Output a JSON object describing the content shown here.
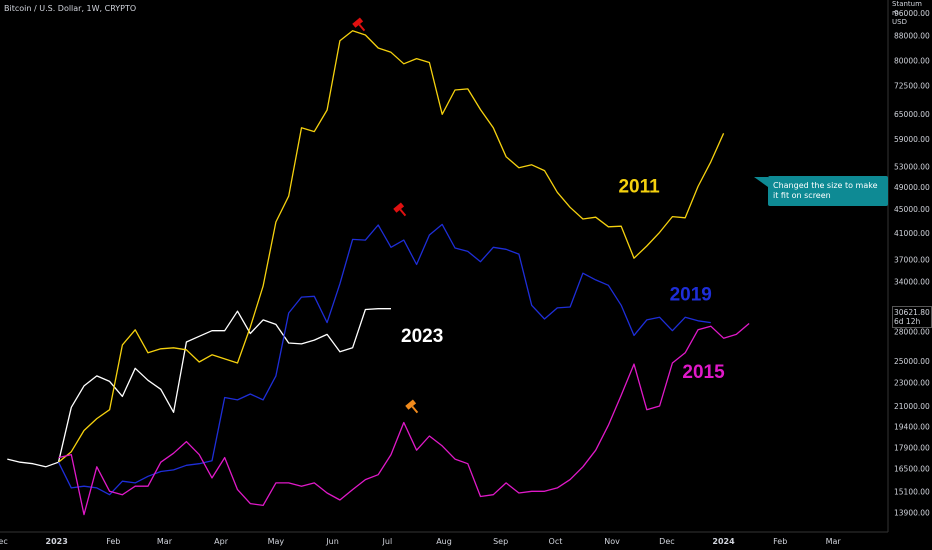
{
  "header": {
    "symbol_title": "Bitcoin / U.S. Dollar, 1W, CRYPTO",
    "corner_line1": "Stantum m",
    "corner_line2": "USD"
  },
  "tooltip": {
    "text": "Changed the size to make it fit on screen"
  },
  "last_price": {
    "value": "30621.80",
    "countdown": "6d 12h"
  },
  "colors": {
    "background": "#000000",
    "y2011": "#f5d10e",
    "y2019": "#1e2ed8",
    "y2015": "#e019c8",
    "y2023": "#ffffff",
    "axis_text": "#d1d4dc",
    "tooltip_bg": "#0e8a94",
    "marker_red": "#e01010",
    "marker_orange": "#f08a1c"
  },
  "chart_data": {
    "type": "line",
    "title": "Bitcoin / U.S. Dollar, 1W, CRYPTO",
    "x_axis": {
      "tick_labels": [
        "Dec",
        "2023",
        "Feb",
        "Mar",
        "Apr",
        "May",
        "Jun",
        "Jul",
        "Aug",
        "Sep",
        "Oct",
        "Nov",
        "Dec",
        "2024",
        "Feb",
        "Mar"
      ],
      "range": [
        "2022-12-01",
        "2024-03-31"
      ]
    },
    "y_axis": {
      "scale": "log",
      "tick_labels": [
        "96000.00",
        "88000.00",
        "80000.00",
        "72500.00",
        "65000.00",
        "59000.00",
        "53000.00",
        "49000.00",
        "45000.00",
        "41000.00",
        "37000.00",
        "34000.00",
        "28000.00",
        "25000.00",
        "23000.00",
        "21000.00",
        "19400.00",
        "17900.00",
        "16500.00",
        "15100.00",
        "13900.00"
      ],
      "range": [
        12900,
        101000
      ]
    },
    "legend": "none",
    "grid": false,
    "annotations": [
      {
        "text": "2011",
        "color": "#f5d10e"
      },
      {
        "text": "2019",
        "color": "#1e2ed8"
      },
      {
        "text": "2015",
        "color": "#e019c8"
      },
      {
        "text": "2023",
        "color": "#ffffff"
      }
    ],
    "series": [
      {
        "name": "2023",
        "color": "#ffffff",
        "points": [
          [
            "2022-12-05",
            17100
          ],
          [
            "2022-12-12",
            16900
          ],
          [
            "2022-12-19",
            16800
          ],
          [
            "2022-12-26",
            16600
          ],
          [
            "2023-01-02",
            16900
          ],
          [
            "2023-01-09",
            20900
          ],
          [
            "2023-01-16",
            22700
          ],
          [
            "2023-01-23",
            23600
          ],
          [
            "2023-01-30",
            23100
          ],
          [
            "2023-02-06",
            21800
          ],
          [
            "2023-02-13",
            24300
          ],
          [
            "2023-02-20",
            23200
          ],
          [
            "2023-02-27",
            22400
          ],
          [
            "2023-03-06",
            20500
          ],
          [
            "2023-03-13",
            26900
          ],
          [
            "2023-03-20",
            27500
          ],
          [
            "2023-03-27",
            28100
          ],
          [
            "2023-04-03",
            28100
          ],
          [
            "2023-04-10",
            30300
          ],
          [
            "2023-04-17",
            27800
          ],
          [
            "2023-04-24",
            29300
          ],
          [
            "2023-05-01",
            28800
          ],
          [
            "2023-05-08",
            26800
          ],
          [
            "2023-05-15",
            26700
          ],
          [
            "2023-05-22",
            27100
          ],
          [
            "2023-05-29",
            27700
          ],
          [
            "2023-06-05",
            25900
          ],
          [
            "2023-06-12",
            26300
          ],
          [
            "2023-06-19",
            30500
          ],
          [
            "2023-06-26",
            30600
          ],
          [
            "2023-07-03",
            30600
          ]
        ]
      },
      {
        "name": "2011",
        "color": "#f5d10e",
        "points": [
          [
            "2023-01-02",
            16900
          ],
          [
            "2023-01-09",
            17600
          ],
          [
            "2023-01-16",
            19100
          ],
          [
            "2023-01-23",
            20000
          ],
          [
            "2023-01-30",
            20700
          ],
          [
            "2023-02-06",
            26600
          ],
          [
            "2023-02-13",
            28200
          ],
          [
            "2023-02-20",
            25800
          ],
          [
            "2023-02-27",
            26200
          ],
          [
            "2023-03-06",
            26300
          ],
          [
            "2023-03-13",
            26100
          ],
          [
            "2023-03-20",
            24900
          ],
          [
            "2023-03-27",
            25600
          ],
          [
            "2023-04-03",
            25200
          ],
          [
            "2023-04-10",
            24800
          ],
          [
            "2023-04-17",
            28500
          ],
          [
            "2023-04-24",
            33400
          ],
          [
            "2023-05-01",
            42800
          ],
          [
            "2023-05-08",
            47300
          ],
          [
            "2023-05-15",
            61600
          ],
          [
            "2023-05-22",
            60700
          ],
          [
            "2023-05-29",
            66000
          ],
          [
            "2023-06-05",
            86300
          ],
          [
            "2023-06-12",
            89700
          ],
          [
            "2023-06-19",
            88200
          ],
          [
            "2023-06-26",
            83900
          ],
          [
            "2023-07-03",
            82500
          ],
          [
            "2023-07-10",
            78900
          ],
          [
            "2023-07-17",
            80500
          ],
          [
            "2023-07-24",
            79300
          ],
          [
            "2023-07-31",
            64900
          ],
          [
            "2023-08-07",
            71300
          ],
          [
            "2023-08-14",
            71600
          ],
          [
            "2023-08-21",
            66100
          ],
          [
            "2023-08-28",
            61600
          ],
          [
            "2023-09-04",
            55100
          ],
          [
            "2023-09-11",
            52800
          ],
          [
            "2023-09-18",
            53400
          ],
          [
            "2023-09-25",
            52200
          ],
          [
            "2023-10-02",
            48000
          ],
          [
            "2023-10-09",
            45300
          ],
          [
            "2023-10-16",
            43300
          ],
          [
            "2023-10-23",
            43600
          ],
          [
            "2023-10-30",
            42000
          ],
          [
            "2023-11-06",
            42100
          ],
          [
            "2023-11-13",
            37200
          ],
          [
            "2023-11-20",
            39000
          ],
          [
            "2023-11-27",
            41100
          ],
          [
            "2023-12-04",
            43700
          ],
          [
            "2023-12-11",
            43500
          ],
          [
            "2023-12-18",
            49100
          ],
          [
            "2023-12-25",
            54000
          ],
          [
            "2024-01-01",
            60300
          ]
        ]
      },
      {
        "name": "2019",
        "color": "#1e2ed8",
        "points": [
          [
            "2023-01-02",
            16900
          ],
          [
            "2023-01-09",
            15300
          ],
          [
            "2023-01-16",
            15400
          ],
          [
            "2023-01-23",
            15300
          ],
          [
            "2023-01-30",
            14900
          ],
          [
            "2023-02-06",
            15700
          ],
          [
            "2023-02-13",
            15600
          ],
          [
            "2023-02-20",
            16000
          ],
          [
            "2023-02-27",
            16300
          ],
          [
            "2023-03-06",
            16400
          ],
          [
            "2023-03-13",
            16700
          ],
          [
            "2023-03-20",
            16800
          ],
          [
            "2023-03-27",
            17000
          ],
          [
            "2023-04-03",
            21700
          ],
          [
            "2023-04-10",
            21500
          ],
          [
            "2023-04-17",
            22000
          ],
          [
            "2023-04-24",
            21500
          ],
          [
            "2023-05-01",
            23600
          ],
          [
            "2023-05-08",
            30100
          ],
          [
            "2023-05-15",
            32000
          ],
          [
            "2023-05-22",
            32100
          ],
          [
            "2023-05-29",
            29000
          ],
          [
            "2023-06-05",
            33700
          ],
          [
            "2023-06-12",
            40000
          ],
          [
            "2023-06-19",
            39900
          ],
          [
            "2023-06-26",
            42300
          ],
          [
            "2023-07-03",
            38800
          ],
          [
            "2023-07-10",
            39900
          ],
          [
            "2023-07-17",
            36300
          ],
          [
            "2023-07-24",
            40700
          ],
          [
            "2023-07-31",
            42400
          ],
          [
            "2023-08-07",
            38700
          ],
          [
            "2023-08-14",
            38200
          ],
          [
            "2023-08-21",
            36700
          ],
          [
            "2023-08-28",
            38800
          ],
          [
            "2023-09-04",
            38500
          ],
          [
            "2023-09-11",
            37800
          ],
          [
            "2023-09-18",
            31000
          ],
          [
            "2023-09-25",
            29400
          ],
          [
            "2023-10-02",
            30700
          ],
          [
            "2023-10-09",
            30800
          ],
          [
            "2023-10-16",
            35100
          ],
          [
            "2023-10-23",
            34200
          ],
          [
            "2023-10-30",
            33500
          ],
          [
            "2023-11-06",
            31000
          ],
          [
            "2023-11-13",
            27600
          ],
          [
            "2023-11-20",
            29300
          ],
          [
            "2023-11-27",
            29600
          ],
          [
            "2023-12-04",
            28100
          ],
          [
            "2023-12-11",
            29600
          ],
          [
            "2023-12-18",
            29200
          ],
          [
            "2023-12-25",
            29000
          ]
        ]
      },
      {
        "name": "2015",
        "color": "#e019c8",
        "points": [
          [
            "2023-01-02",
            17200
          ],
          [
            "2023-01-09",
            17400
          ],
          [
            "2023-01-16",
            13800
          ],
          [
            "2023-01-23",
            16600
          ],
          [
            "2023-01-30",
            15100
          ],
          [
            "2023-02-06",
            14900
          ],
          [
            "2023-02-13",
            15400
          ],
          [
            "2023-02-20",
            15400
          ],
          [
            "2023-02-27",
            16900
          ],
          [
            "2023-03-06",
            17500
          ],
          [
            "2023-03-13",
            18300
          ],
          [
            "2023-03-20",
            17400
          ],
          [
            "2023-03-27",
            15900
          ],
          [
            "2023-04-03",
            17200
          ],
          [
            "2023-04-10",
            15200
          ],
          [
            "2023-04-17",
            14400
          ],
          [
            "2023-04-24",
            14300
          ],
          [
            "2023-05-01",
            15600
          ],
          [
            "2023-05-08",
            15600
          ],
          [
            "2023-05-15",
            15400
          ],
          [
            "2023-05-22",
            15600
          ],
          [
            "2023-05-29",
            15000
          ],
          [
            "2023-06-05",
            14600
          ],
          [
            "2023-06-12",
            15200
          ],
          [
            "2023-06-19",
            15800
          ],
          [
            "2023-06-26",
            16100
          ],
          [
            "2023-07-03",
            17400
          ],
          [
            "2023-07-10",
            19700
          ],
          [
            "2023-07-17",
            17700
          ],
          [
            "2023-07-24",
            18700
          ],
          [
            "2023-07-31",
            18000
          ],
          [
            "2023-08-07",
            17100
          ],
          [
            "2023-08-14",
            16800
          ],
          [
            "2023-08-21",
            14800
          ],
          [
            "2023-08-28",
            14900
          ],
          [
            "2023-09-04",
            15600
          ],
          [
            "2023-09-11",
            15000
          ],
          [
            "2023-09-18",
            15100
          ],
          [
            "2023-09-25",
            15100
          ],
          [
            "2023-10-02",
            15300
          ],
          [
            "2023-10-09",
            15800
          ],
          [
            "2023-10-16",
            16600
          ],
          [
            "2023-10-23",
            17700
          ],
          [
            "2023-10-30",
            19500
          ],
          [
            "2023-11-06",
            21900
          ],
          [
            "2023-11-13",
            24700
          ],
          [
            "2023-11-20",
            20700
          ],
          [
            "2023-11-27",
            21000
          ],
          [
            "2023-12-04",
            24800
          ],
          [
            "2023-12-11",
            25800
          ],
          [
            "2023-12-18",
            28200
          ],
          [
            "2023-12-25",
            28600
          ],
          [
            "2024-01-01",
            27300
          ],
          [
            "2024-01-08",
            27700
          ],
          [
            "2024-01-15",
            28900
          ]
        ]
      }
    ]
  }
}
